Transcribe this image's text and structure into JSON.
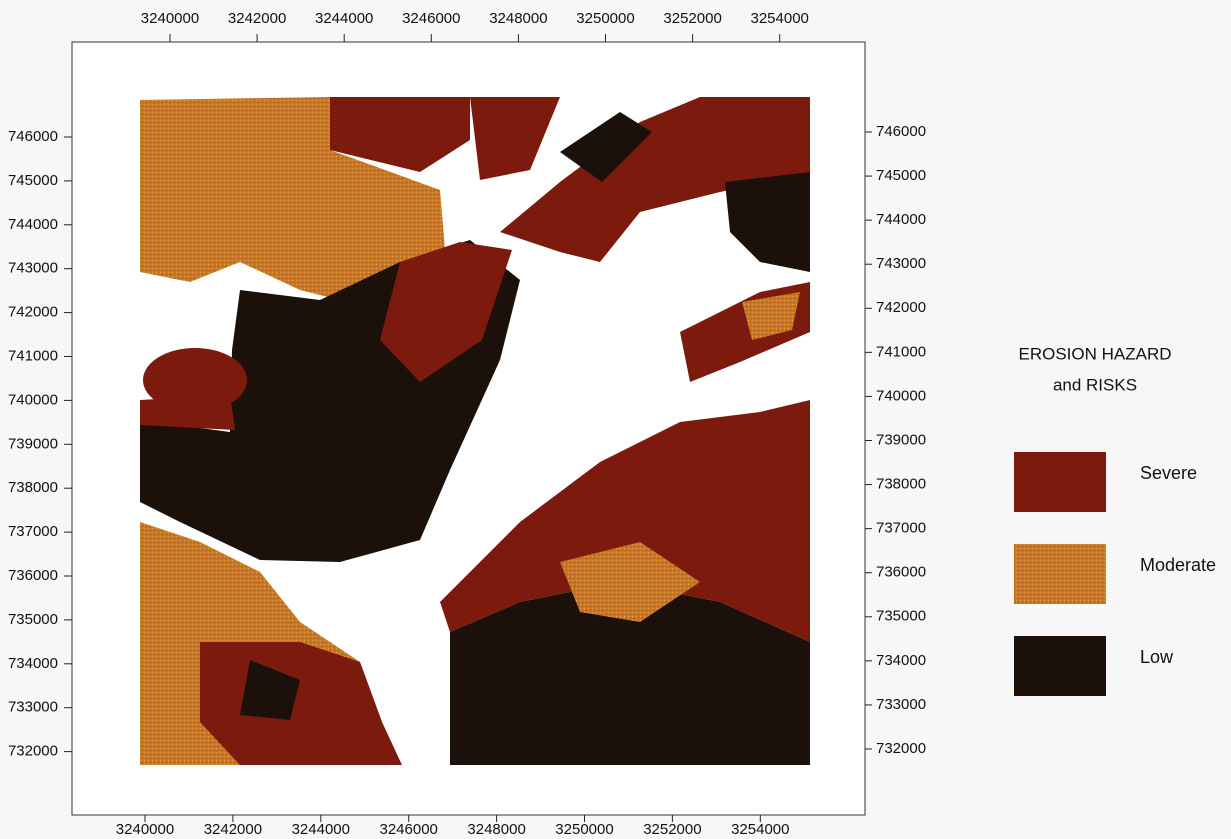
{
  "map": {
    "x_ticks_top": [
      3240000,
      3242000,
      3244000,
      3246000,
      3248000,
      3250000,
      3252000,
      3254000
    ],
    "x_ticks_bottom": [
      3240000,
      3242000,
      3244000,
      3246000,
      3248000,
      3250000,
      3252000,
      3254000
    ],
    "y_ticks_left": [
      746000,
      745000,
      744000,
      743000,
      742000,
      741000,
      740000,
      739000,
      738000,
      737000,
      736000,
      735000,
      734000,
      733000,
      732000
    ],
    "y_ticks_right": [
      746000,
      745000,
      744000,
      743000,
      742000,
      741000,
      740000,
      739000,
      738000,
      737000,
      736000,
      735000,
      734000,
      733000,
      732000
    ],
    "legend": {
      "title": [
        "EROSION HAZARD",
        "and RISKS"
      ],
      "items": [
        {
          "label": "Severe",
          "color": "#7d1a0e"
        },
        {
          "label": "Moderate",
          "color": "#c9791f"
        },
        {
          "label": "Low",
          "color": "#1b110a"
        }
      ]
    }
  }
}
